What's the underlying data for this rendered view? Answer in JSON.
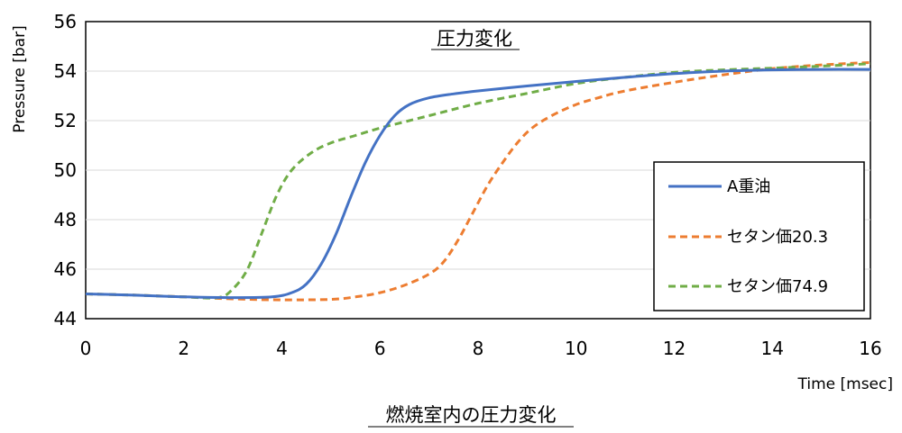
{
  "chart_data": {
    "type": "line",
    "title": "圧力変化",
    "xlabel": "Time [msec]",
    "ylabel": "Pressure [bar]",
    "xlim": [
      0,
      16
    ],
    "ylim": [
      44,
      56
    ],
    "xticks": [
      "0",
      "2",
      "4",
      "6",
      "8",
      "10",
      "12",
      "14",
      "16"
    ],
    "yticks": [
      "44",
      "46",
      "48",
      "50",
      "52",
      "54",
      "56"
    ],
    "grid": "horizontal",
    "legend_placement": "bottom-right",
    "series": [
      {
        "name": "A重油",
        "color": "#4472C4",
        "dash": "solid",
        "points": [
          [
            0,
            45.0
          ],
          [
            1,
            44.95
          ],
          [
            2,
            44.88
          ],
          [
            3,
            44.85
          ],
          [
            3.8,
            44.88
          ],
          [
            4.2,
            45.05
          ],
          [
            4.5,
            45.4
          ],
          [
            4.8,
            46.2
          ],
          [
            5.1,
            47.4
          ],
          [
            5.4,
            48.9
          ],
          [
            5.7,
            50.3
          ],
          [
            6.0,
            51.4
          ],
          [
            6.3,
            52.2
          ],
          [
            6.6,
            52.65
          ],
          [
            7.0,
            52.92
          ],
          [
            7.5,
            53.08
          ],
          [
            8,
            53.2
          ],
          [
            9,
            53.4
          ],
          [
            10,
            53.58
          ],
          [
            11,
            53.75
          ],
          [
            12,
            53.9
          ],
          [
            13,
            54.0
          ],
          [
            14,
            54.05
          ],
          [
            15,
            54.07
          ],
          [
            16,
            54.07
          ]
        ]
      },
      {
        "name": "セタン価20.3",
        "color": "#ED7D31",
        "dash": "dashed",
        "points": [
          [
            0,
            45.0
          ],
          [
            1,
            44.95
          ],
          [
            2,
            44.88
          ],
          [
            3,
            44.8
          ],
          [
            4,
            44.76
          ],
          [
            5,
            44.78
          ],
          [
            5.5,
            44.88
          ],
          [
            6,
            45.05
          ],
          [
            6.5,
            45.35
          ],
          [
            7,
            45.8
          ],
          [
            7.3,
            46.3
          ],
          [
            7.6,
            47.2
          ],
          [
            7.9,
            48.3
          ],
          [
            8.2,
            49.4
          ],
          [
            8.5,
            50.3
          ],
          [
            8.8,
            51.1
          ],
          [
            9.1,
            51.7
          ],
          [
            9.5,
            52.2
          ],
          [
            10,
            52.65
          ],
          [
            10.5,
            52.95
          ],
          [
            11,
            53.2
          ],
          [
            12,
            53.55
          ],
          [
            13,
            53.85
          ],
          [
            14,
            54.1
          ],
          [
            15,
            54.25
          ],
          [
            16,
            54.35
          ]
        ]
      },
      {
        "name": "セタン価74.9",
        "color": "#70AD47",
        "dash": "dashed",
        "points": [
          [
            0,
            45.0
          ],
          [
            1,
            44.95
          ],
          [
            2,
            44.88
          ],
          [
            2.7,
            44.85
          ],
          [
            3.0,
            45.2
          ],
          [
            3.3,
            46.0
          ],
          [
            3.6,
            47.5
          ],
          [
            3.9,
            49.0
          ],
          [
            4.2,
            50.0
          ],
          [
            4.6,
            50.7
          ],
          [
            5,
            51.1
          ],
          [
            5.5,
            51.4
          ],
          [
            6,
            51.7
          ],
          [
            6.5,
            51.95
          ],
          [
            7,
            52.2
          ],
          [
            8,
            52.7
          ],
          [
            9,
            53.1
          ],
          [
            10,
            53.5
          ],
          [
            11,
            53.75
          ],
          [
            12,
            53.95
          ],
          [
            13,
            54.05
          ],
          [
            14,
            54.12
          ],
          [
            15,
            54.2
          ],
          [
            16,
            54.3
          ]
        ]
      }
    ]
  },
  "caption": "燃焼室内の圧力変化"
}
